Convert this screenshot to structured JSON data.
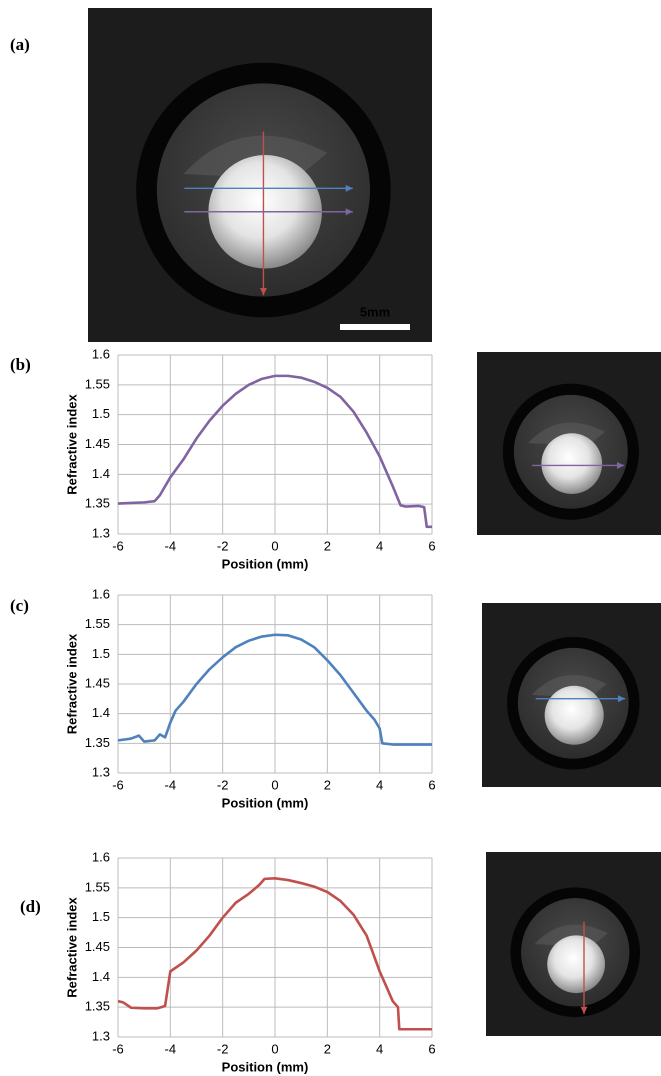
{
  "figure": {
    "panels": [
      "(a)",
      "(b)",
      "(c)",
      "(d)"
    ],
    "scale_bar": "5mm"
  },
  "chart_data": [
    {
      "type": "line",
      "xlabel": "Position (mm)",
      "ylabel": "Refractive index",
      "x": [
        -6,
        -5.5,
        -5,
        -4.6,
        -4.4,
        -4,
        -3.5,
        -3,
        -2.5,
        -2,
        -1.5,
        -1,
        -0.5,
        0,
        0.5,
        1,
        1.5,
        2,
        2.5,
        3,
        3.5,
        4,
        4.5,
        4.8,
        5,
        5.5,
        5.7,
        5.8,
        6
      ],
      "series": [
        {
          "color": "#8064a2",
          "values": [
            1.351,
            1.352,
            1.353,
            1.355,
            1.365,
            1.395,
            1.425,
            1.46,
            1.49,
            1.515,
            1.535,
            1.55,
            1.56,
            1.565,
            1.565,
            1.562,
            1.555,
            1.545,
            1.53,
            1.505,
            1.47,
            1.43,
            1.38,
            1.348,
            1.346,
            1.347,
            1.345,
            1.312,
            1.312
          ]
        }
      ],
      "xlim": [
        -6,
        6
      ],
      "xticks": [
        -6,
        -4,
        -2,
        0,
        2,
        4,
        6
      ],
      "ylim": [
        1.3,
        1.6
      ],
      "yticks": [
        1.3,
        1.35,
        1.4,
        1.45,
        1.5,
        1.55,
        1.6
      ],
      "grid": true
    },
    {
      "type": "line",
      "xlabel": "Position (mm)",
      "ylabel": "Refractive index",
      "x": [
        -6,
        -5.5,
        -5.2,
        -5,
        -4.6,
        -4.4,
        -4.2,
        -4,
        -3.8,
        -3.5,
        -3,
        -2.5,
        -2,
        -1.5,
        -1,
        -0.5,
        0,
        0.5,
        1,
        1.5,
        2,
        2.5,
        3,
        3.5,
        3.8,
        4,
        4.1,
        4.5,
        5,
        6
      ],
      "series": [
        {
          "color": "#4f81bd",
          "values": [
            1.355,
            1.358,
            1.363,
            1.353,
            1.355,
            1.365,
            1.36,
            1.385,
            1.405,
            1.42,
            1.45,
            1.475,
            1.495,
            1.512,
            1.523,
            1.53,
            1.533,
            1.532,
            1.525,
            1.512,
            1.49,
            1.465,
            1.435,
            1.405,
            1.39,
            1.375,
            1.35,
            1.348,
            1.348,
            1.348
          ]
        }
      ],
      "xlim": [
        -6,
        6
      ],
      "xticks": [
        -6,
        -4,
        -2,
        0,
        2,
        4,
        6
      ],
      "ylim": [
        1.3,
        1.6
      ],
      "yticks": [
        1.3,
        1.35,
        1.4,
        1.45,
        1.5,
        1.55,
        1.6
      ],
      "grid": true
    },
    {
      "type": "line",
      "xlabel": "Position (mm)",
      "ylabel": "Refractive index",
      "x": [
        -6,
        -5.8,
        -5.5,
        -5,
        -4.5,
        -4.2,
        -4,
        -3.5,
        -3,
        -2.5,
        -2,
        -1.5,
        -1,
        -0.6,
        -0.4,
        0,
        0.5,
        1,
        1.5,
        2,
        2.5,
        3,
        3.5,
        4,
        4.5,
        4.7,
        4.75,
        6
      ],
      "series": [
        {
          "color": "#c0504d",
          "values": [
            1.36,
            1.358,
            1.349,
            1.348,
            1.348,
            1.352,
            1.41,
            1.425,
            1.445,
            1.47,
            1.5,
            1.525,
            1.54,
            1.555,
            1.565,
            1.566,
            1.563,
            1.558,
            1.552,
            1.543,
            1.528,
            1.505,
            1.47,
            1.41,
            1.36,
            1.35,
            1.313,
            1.313
          ]
        }
      ],
      "xlim": [
        -6,
        6
      ],
      "xticks": [
        -6,
        -4,
        -2,
        0,
        2,
        4,
        6
      ],
      "ylim": [
        1.3,
        1.6
      ],
      "yticks": [
        1.3,
        1.35,
        1.4,
        1.45,
        1.5,
        1.55,
        1.6
      ],
      "grid": true
    }
  ]
}
